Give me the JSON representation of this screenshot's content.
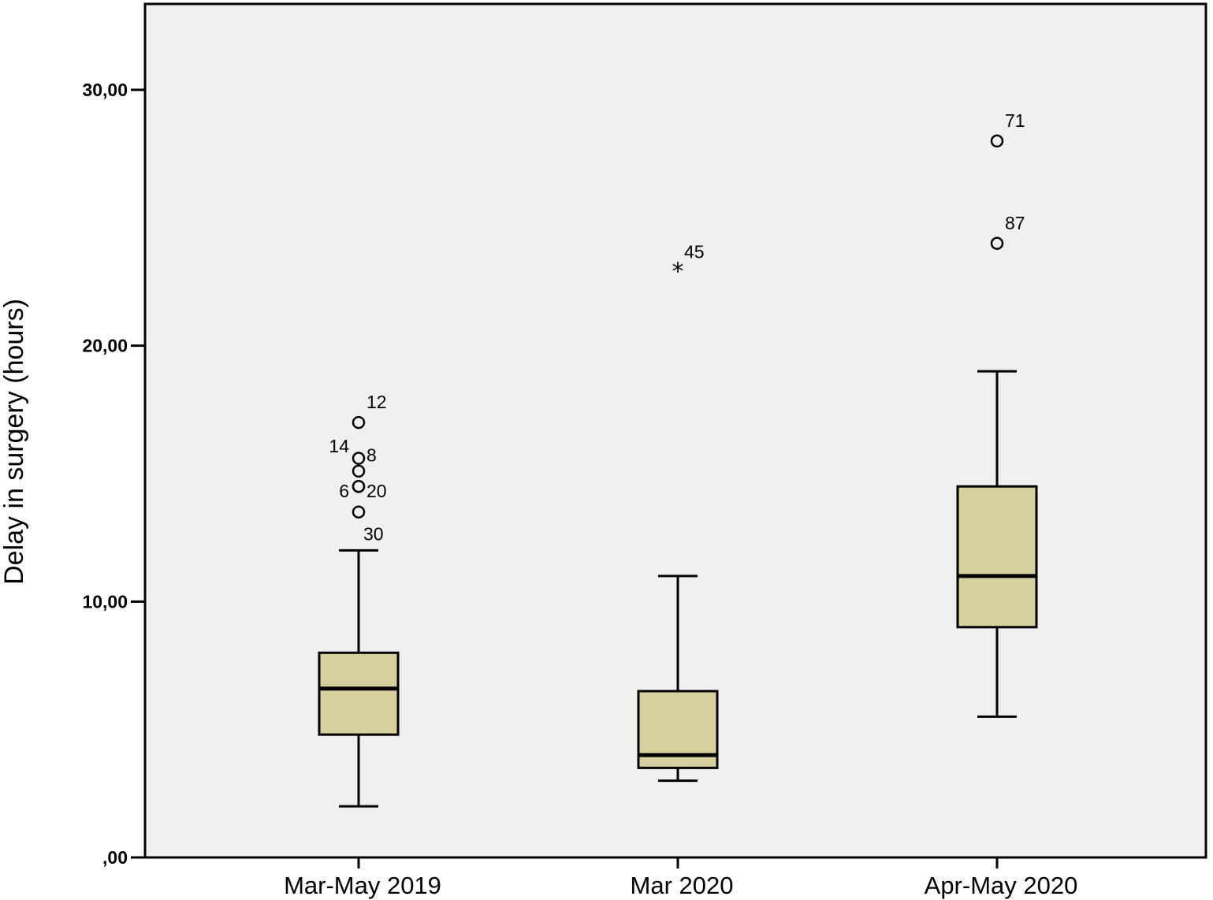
{
  "chart_data": {
    "type": "boxplot",
    "ylabel": "Delay in surgery (hours)",
    "ylim": [
      0,
      33.3
    ],
    "yticks": [
      0,
      10,
      20,
      30
    ],
    "ytick_labels": [
      ",00",
      "10,00",
      "20,00",
      "30,00"
    ],
    "categories": [
      "Mar-May 2019",
      "Mar 2020",
      "Apr-May 2020"
    ],
    "grid": false,
    "box_color": "#d7cf9e",
    "plot_background": "#f0f0f0",
    "boxes": [
      {
        "category": "Mar-May 2019",
        "whisker_low": 2.0,
        "q1": 4.8,
        "median": 6.6,
        "q3": 8.0,
        "whisker_high": 12.0,
        "outliers": [
          {
            "value": 17.0,
            "label": "12",
            "marker": "circle"
          },
          {
            "value": 15.6,
            "label": "8",
            "marker": "circle"
          },
          {
            "value": 15.1,
            "label": "14",
            "marker": "circle"
          },
          {
            "value": 14.5,
            "label": "20",
            "marker": "circle"
          },
          {
            "value": 14.5,
            "label": "6",
            "marker": "circle"
          },
          {
            "value": 13.5,
            "label": "30",
            "marker": "circle"
          }
        ]
      },
      {
        "category": "Mar 2020",
        "whisker_low": 3.0,
        "q1": 3.5,
        "median": 4.0,
        "q3": 6.5,
        "whisker_high": 11.0,
        "outliers": [
          {
            "value": 23.0,
            "label": "45",
            "marker": "star"
          }
        ]
      },
      {
        "category": "Apr-May 2020",
        "whisker_low": 5.5,
        "q1": 9.0,
        "median": 11.0,
        "q3": 14.5,
        "whisker_high": 19.0,
        "outliers": [
          {
            "value": 28.0,
            "label": "71",
            "marker": "circle"
          },
          {
            "value": 24.0,
            "label": "87",
            "marker": "circle"
          }
        ]
      }
    ]
  }
}
